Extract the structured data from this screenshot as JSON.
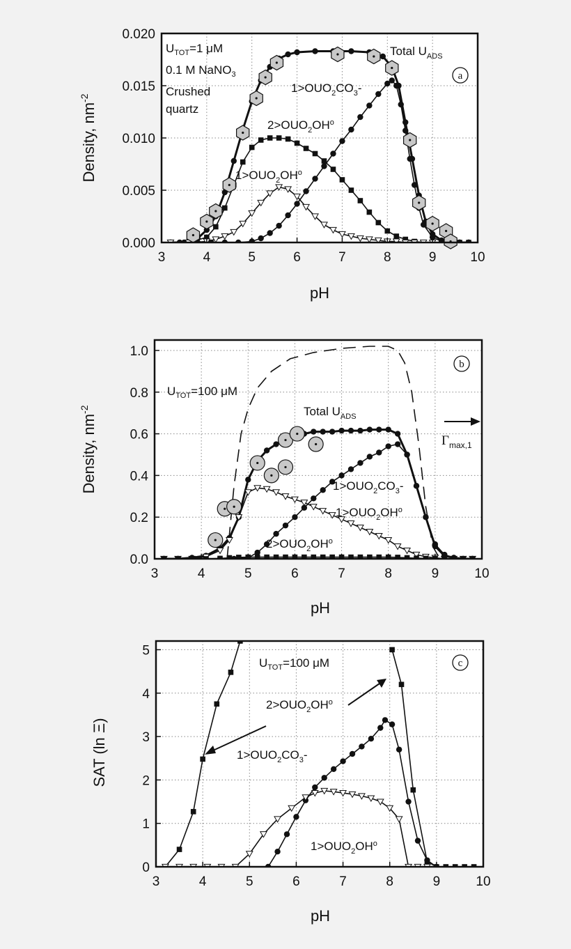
{
  "chart_data": [
    {
      "type": "line",
      "panel_label": "a",
      "xlabel": "pH",
      "ylabel": "Density, nm",
      "ylabel_sup": "-2",
      "xlim": [
        3,
        10
      ],
      "ylim": [
        0,
        0.02
      ],
      "xticks": [
        "3",
        "4",
        "5",
        "6",
        "7",
        "8",
        "9",
        "10"
      ],
      "yticks": [
        "0.000",
        "0.005",
        "0.010",
        "0.015",
        "0.020"
      ],
      "grid": true,
      "annotations": [
        {
          "text": "U",
          "sub": "TOT",
          "rest": "=1 μM"
        },
        {
          "text": "0.1 M NaNO",
          "sub": "3",
          "rest": ""
        },
        {
          "text": "Crushed",
          "sub": "",
          "rest": ""
        },
        {
          "text": "quartz",
          "sub": "",
          "rest": ""
        },
        {
          "text": "Total U",
          "sub": "ADS",
          "rest": ""
        },
        {
          "text": "1>OUO",
          "sub": "2",
          "rest": "CO",
          "sub2": "3",
          "rest2": "-"
        },
        {
          "text": "2>OUO",
          "sub": "2",
          "rest": "OH",
          "sup": "o"
        },
        {
          "text": "1>OUO",
          "sub": "2",
          "rest": "OH",
          "sup": "o"
        }
      ],
      "series": [
        {
          "kind": "total",
          "x": [
            3.2,
            3.4,
            3.6,
            3.8,
            4.0,
            4.2,
            4.4,
            4.6,
            4.8,
            5.0,
            5.2,
            5.4,
            5.6,
            5.8,
            6.0,
            6.4,
            6.8,
            7.2,
            7.6,
            7.9,
            8.1,
            8.25,
            8.4,
            8.55,
            8.7,
            8.85,
            9.0,
            9.2,
            9.4,
            9.6,
            9.8
          ],
          "y": [
            0.0,
            0.0,
            0.0001,
            0.0004,
            0.0012,
            0.0025,
            0.0048,
            0.0078,
            0.0108,
            0.0135,
            0.0155,
            0.0168,
            0.0176,
            0.018,
            0.0182,
            0.0183,
            0.0183,
            0.0183,
            0.0182,
            0.0178,
            0.0168,
            0.015,
            0.0115,
            0.008,
            0.0045,
            0.002,
            0.0008,
            0.0002,
            0.0,
            0.0,
            0.0
          ]
        },
        {
          "kind": "dot",
          "name": "1>OUO2CO3-",
          "x": [
            3.2,
            3.5,
            3.8,
            4.1,
            4.4,
            4.7,
            5.0,
            5.2,
            5.4,
            5.6,
            5.8,
            6.0,
            6.2,
            6.4,
            6.6,
            6.8,
            7.0,
            7.2,
            7.4,
            7.6,
            7.8,
            8.0,
            8.1,
            8.2,
            8.3,
            8.4,
            8.5,
            8.6,
            8.7,
            8.8,
            9.0,
            9.2,
            9.4,
            9.6,
            9.8
          ],
          "y": [
            0.0,
            0.0,
            0.0,
            0.0,
            0.0,
            0.0,
            0.0001,
            0.0004,
            0.0009,
            0.0016,
            0.0026,
            0.0037,
            0.0049,
            0.0061,
            0.0073,
            0.0085,
            0.0097,
            0.0108,
            0.012,
            0.0131,
            0.0142,
            0.0152,
            0.0155,
            0.015,
            0.0132,
            0.0107,
            0.008,
            0.0055,
            0.0033,
            0.0017,
            0.0005,
            0.0001,
            0.0,
            0.0,
            0.0
          ]
        },
        {
          "kind": "square",
          "name": "2>OUO2OH°",
          "x": [
            3.2,
            3.6,
            4.0,
            4.2,
            4.4,
            4.6,
            4.8,
            5.0,
            5.2,
            5.4,
            5.6,
            5.8,
            6.0,
            6.2,
            6.4,
            6.6,
            6.8,
            7.0,
            7.2,
            7.4,
            7.6,
            7.8,
            8.0,
            8.2,
            8.4,
            8.6,
            8.8,
            9.0,
            9.2,
            9.4,
            9.6,
            9.8
          ],
          "y": [
            0.0,
            0.0,
            0.0005,
            0.0015,
            0.0033,
            0.0055,
            0.0077,
            0.0091,
            0.0098,
            0.01,
            0.01,
            0.0099,
            0.0095,
            0.009,
            0.0085,
            0.0078,
            0.007,
            0.006,
            0.005,
            0.004,
            0.0029,
            0.0019,
            0.0011,
            0.0006,
            0.0003,
            0.0001,
            0.0,
            0.0,
            0.0,
            0.0,
            0.0,
            0.0
          ]
        },
        {
          "kind": "tri",
          "name": "1>OUO2OH°",
          "x": [
            3.2,
            3.6,
            4.0,
            4.2,
            4.4,
            4.6,
            4.8,
            5.0,
            5.2,
            5.4,
            5.6,
            5.8,
            6.0,
            6.2,
            6.4,
            6.6,
            6.8,
            7.0,
            7.2,
            7.4,
            7.6,
            7.8,
            8.0,
            8.2,
            8.4,
            8.6,
            8.8,
            9.0
          ],
          "y": [
            0.0,
            0.0,
            0.0001,
            0.0003,
            0.0006,
            0.001,
            0.0018,
            0.0028,
            0.0038,
            0.0047,
            0.0053,
            0.0051,
            0.0044,
            0.0034,
            0.0025,
            0.0017,
            0.0012,
            0.0008,
            0.0006,
            0.0004,
            0.0003,
            0.0002,
            0.0001,
            0.0001,
            0.0,
            0.0,
            0.0,
            0.0
          ]
        },
        {
          "kind": "hexpoint",
          "name": "data",
          "x": [
            3.7,
            4.0,
            4.2,
            4.5,
            4.8,
            5.1,
            5.3,
            5.55,
            6.9,
            7.7,
            8.1,
            8.5,
            8.7,
            9.0,
            9.3,
            9.4
          ],
          "y": [
            0.0007,
            0.002,
            0.003,
            0.0055,
            0.0105,
            0.0138,
            0.0158,
            0.0172,
            0.018,
            0.0178,
            0.0167,
            0.0098,
            0.0038,
            0.0018,
            0.0011,
            0.0001
          ]
        }
      ]
    },
    {
      "type": "line",
      "panel_label": "b",
      "xlabel": "pH",
      "ylabel": "Density, nm",
      "ylabel_sup": "-2",
      "xlim": [
        3,
        10
      ],
      "ylim": [
        0,
        1.05
      ],
      "xticks": [
        "3",
        "4",
        "5",
        "6",
        "7",
        "8",
        "9",
        "10"
      ],
      "yticks": [
        "0.0",
        "0.2",
        "0.4",
        "0.6",
        "0.8",
        "1.0"
      ],
      "grid": true,
      "annotations": [
        {
          "text": "U",
          "sub": "TOT",
          "rest": "=100 μM"
        },
        {
          "text": "Total U",
          "sub": "ADS",
          "rest": ""
        },
        {
          "text": "1>OUO",
          "sub": "2",
          "rest": "CO",
          "sub2": "3",
          "rest2": "-"
        },
        {
          "text": "1>OUO",
          "sub": "2",
          "rest": "OH",
          "sup": "o"
        },
        {
          "text": "2>OUO",
          "sub": "2",
          "rest": "OH",
          "sup": "o"
        },
        {
          "text": "Γ",
          "sub": "max,1",
          "rest": ""
        }
      ],
      "series": [
        {
          "kind": "dashed",
          "name": "Γmax,1",
          "x": [
            4.55,
            4.7,
            4.85,
            5.0,
            5.2,
            5.5,
            5.9,
            6.4,
            7.0,
            7.6,
            8.0,
            8.2,
            8.35,
            8.5,
            8.65,
            8.8,
            8.95,
            9.1
          ],
          "y": [
            0.0,
            0.35,
            0.6,
            0.72,
            0.82,
            0.9,
            0.96,
            0.99,
            1.01,
            1.02,
            1.02,
            1.0,
            0.94,
            0.8,
            0.55,
            0.25,
            0.06,
            0.0
          ]
        },
        {
          "kind": "total",
          "x": [
            3.2,
            3.5,
            3.8,
            4.1,
            4.4,
            4.6,
            4.8,
            5.0,
            5.2,
            5.4,
            5.6,
            5.8,
            6.0,
            6.2,
            6.4,
            6.6,
            6.8,
            7.0,
            7.2,
            7.4,
            7.6,
            7.8,
            8.0,
            8.2,
            8.4,
            8.6,
            8.8,
            9.0,
            9.2,
            9.4,
            9.6,
            9.8
          ],
          "y": [
            0.0,
            0.0,
            0.005,
            0.015,
            0.05,
            0.1,
            0.2,
            0.38,
            0.47,
            0.52,
            0.55,
            0.58,
            0.6,
            0.6,
            0.61,
            0.61,
            0.61,
            0.615,
            0.615,
            0.615,
            0.62,
            0.62,
            0.62,
            0.6,
            0.5,
            0.35,
            0.2,
            0.06,
            0.015,
            0.005,
            0.0,
            0.0
          ]
        },
        {
          "kind": "dot",
          "name": "1>OUO2CO3-",
          "x": [
            3.2,
            3.5,
            3.8,
            4.1,
            4.4,
            4.7,
            5.0,
            5.2,
            5.4,
            5.6,
            5.8,
            6.0,
            6.2,
            6.4,
            6.6,
            6.8,
            7.0,
            7.2,
            7.4,
            7.6,
            7.8,
            8.0,
            8.2,
            8.4,
            8.6,
            8.8,
            9.0,
            9.2,
            9.4,
            9.6,
            9.8
          ],
          "y": [
            0.0,
            0.0,
            0.0,
            0.0,
            0.0,
            0.0,
            0.005,
            0.03,
            0.07,
            0.12,
            0.16,
            0.2,
            0.245,
            0.29,
            0.33,
            0.37,
            0.4,
            0.43,
            0.46,
            0.49,
            0.51,
            0.54,
            0.55,
            0.5,
            0.35,
            0.2,
            0.07,
            0.02,
            0.005,
            0.0,
            0.0
          ]
        },
        {
          "kind": "tri",
          "name": "1>OUO2OH°",
          "x": [
            3.2,
            3.5,
            3.8,
            4.1,
            4.4,
            4.6,
            4.8,
            5.0,
            5.2,
            5.4,
            5.6,
            5.8,
            6.0,
            6.2,
            6.4,
            6.6,
            6.8,
            7.0,
            7.2,
            7.4,
            7.6,
            7.8,
            8.0,
            8.2,
            8.4,
            8.6,
            8.8,
            9.0,
            9.2,
            9.4,
            9.6,
            9.8
          ],
          "y": [
            0.0,
            0.0,
            0.0,
            0.01,
            0.04,
            0.09,
            0.2,
            0.32,
            0.34,
            0.335,
            0.32,
            0.3,
            0.285,
            0.27,
            0.25,
            0.23,
            0.21,
            0.19,
            0.17,
            0.15,
            0.13,
            0.11,
            0.09,
            0.06,
            0.04,
            0.02,
            0.01,
            0.005,
            0.0,
            0.0,
            0.0,
            0.0
          ]
        },
        {
          "kind": "square",
          "name": "2>OUO2OH°",
          "x": [
            3.2,
            3.5,
            3.8,
            4.1,
            4.4,
            4.6,
            4.8,
            5.0,
            5.2,
            5.4,
            5.6,
            5.8,
            6.0,
            6.2,
            6.4,
            6.6,
            6.8,
            7.0,
            7.2,
            7.4,
            7.6,
            7.8,
            8.0,
            8.2,
            8.4,
            8.6,
            8.8,
            9.0,
            9.2,
            9.4,
            9.6,
            9.8
          ],
          "y": [
            0.0,
            0.0,
            0.0,
            0.0,
            0.002,
            0.005,
            0.007,
            0.008,
            0.008,
            0.008,
            0.008,
            0.008,
            0.008,
            0.008,
            0.008,
            0.008,
            0.008,
            0.008,
            0.008,
            0.008,
            0.008,
            0.008,
            0.008,
            0.007,
            0.005,
            0.003,
            0.002,
            0.001,
            0.0,
            0.0,
            0.0,
            0.0
          ]
        },
        {
          "kind": "circpoint",
          "name": "data",
          "x": [
            4.3,
            4.5,
            4.7,
            5.2,
            5.5,
            5.8,
            5.8,
            6.05,
            6.45
          ],
          "y": [
            0.09,
            0.24,
            0.25,
            0.46,
            0.4,
            0.44,
            0.57,
            0.6,
            0.55
          ]
        }
      ]
    },
    {
      "type": "line",
      "panel_label": "c",
      "xlabel": "pH",
      "ylabel": "SAT (ln Ξ)",
      "xlim": [
        3,
        10
      ],
      "ylim": [
        0,
        5.2
      ],
      "xticks": [
        "3",
        "4",
        "5",
        "6",
        "7",
        "8",
        "9",
        "10"
      ],
      "yticks": [
        "0",
        "1",
        "2",
        "3",
        "4",
        "5"
      ],
      "grid": true,
      "annotations": [
        {
          "text": "U",
          "sub": "TOT",
          "rest": "=100 μM"
        },
        {
          "text": "2>OUO",
          "sub": "2",
          "rest": "OH",
          "sup": "o"
        },
        {
          "text": "1>OUO",
          "sub": "2",
          "rest": "CO",
          "sub2": "3",
          "rest2": "-"
        },
        {
          "text": "1>OUO",
          "sub": "2",
          "rest": "OH",
          "sup": "o"
        }
      ],
      "series": [
        {
          "kind": "square",
          "name": "2>OUO2OH°",
          "x": [
            3.2,
            3.5,
            3.8,
            4.0,
            4.3,
            4.6,
            4.8
          ],
          "y": [
            0.0,
            0.4,
            1.27,
            2.48,
            3.75,
            4.48,
            5.2
          ],
          "x2": [
            8.05,
            8.25,
            8.5,
            8.8,
            9.0,
            9.2,
            9.4,
            9.6,
            9.8
          ],
          "y2": [
            5.0,
            4.2,
            1.77,
            0.12,
            0.0,
            0.0,
            0.0,
            0.0,
            0.0
          ]
        },
        {
          "kind": "dot",
          "name": "1>OUO2CO3-",
          "x": [
            5.4,
            5.6,
            5.8,
            6.0,
            6.2,
            6.4,
            6.6,
            6.8,
            7.0,
            7.2,
            7.4,
            7.6,
            7.8,
            7.9,
            8.05,
            8.2,
            8.4,
            8.6,
            8.8,
            9.0
          ],
          "y": [
            0.0,
            0.35,
            0.75,
            1.15,
            1.53,
            1.83,
            2.05,
            2.25,
            2.43,
            2.6,
            2.77,
            2.95,
            3.2,
            3.38,
            3.28,
            2.7,
            1.5,
            0.6,
            0.15,
            0.0
          ]
        },
        {
          "kind": "tri",
          "name": "1>OUO2OH°",
          "x": [
            3.2,
            3.5,
            3.8,
            4.1,
            4.4,
            4.7,
            5.0,
            5.3,
            5.6,
            5.9,
            6.2,
            6.4,
            6.6,
            6.8,
            7.0,
            7.2,
            7.4,
            7.6,
            7.8,
            8.0,
            8.2,
            8.4,
            8.6,
            8.8
          ],
          "y": [
            0.0,
            0.0,
            0.0,
            0.0,
            0.0,
            0.0,
            0.3,
            0.75,
            1.1,
            1.35,
            1.6,
            1.7,
            1.75,
            1.73,
            1.7,
            1.67,
            1.63,
            1.58,
            1.5,
            1.35,
            1.1,
            0.0,
            0.0,
            0.0
          ]
        }
      ]
    }
  ]
}
